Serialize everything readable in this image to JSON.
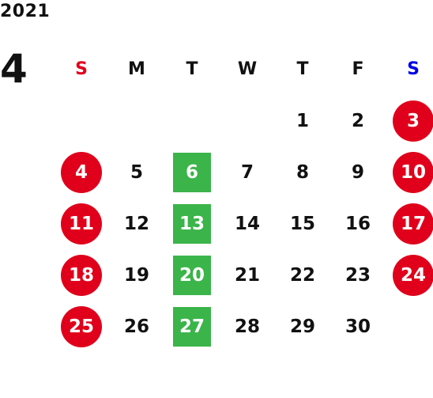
{
  "year": "2021",
  "month": "4",
  "colors": {
    "sunday": "#e0001b",
    "saturday": "#0000e6",
    "holiday_bg": "#e0001b",
    "marked_bg": "#3bb44a"
  },
  "weekdays": [
    "S",
    "M",
    "T",
    "W",
    "T",
    "F",
    "S"
  ],
  "weeks": [
    [
      {
        "label": ""
      },
      {
        "label": ""
      },
      {
        "label": ""
      },
      {
        "label": ""
      },
      {
        "label": "1"
      },
      {
        "label": "2"
      },
      {
        "label": "3",
        "style": "holiday"
      }
    ],
    [
      {
        "label": "4",
        "style": "holiday"
      },
      {
        "label": "5"
      },
      {
        "label": "6",
        "style": "marked"
      },
      {
        "label": "7"
      },
      {
        "label": "8"
      },
      {
        "label": "9"
      },
      {
        "label": "10",
        "style": "holiday"
      }
    ],
    [
      {
        "label": "11",
        "style": "holiday"
      },
      {
        "label": "12"
      },
      {
        "label": "13",
        "style": "marked"
      },
      {
        "label": "14"
      },
      {
        "label": "15"
      },
      {
        "label": "16"
      },
      {
        "label": "17",
        "style": "holiday"
      }
    ],
    [
      {
        "label": "18",
        "style": "holiday"
      },
      {
        "label": "19"
      },
      {
        "label": "20",
        "style": "marked"
      },
      {
        "label": "21"
      },
      {
        "label": "22"
      },
      {
        "label": "23"
      },
      {
        "label": "24",
        "style": "holiday"
      }
    ],
    [
      {
        "label": "25",
        "style": "holiday"
      },
      {
        "label": "26"
      },
      {
        "label": "27",
        "style": "marked"
      },
      {
        "label": "28"
      },
      {
        "label": "29"
      },
      {
        "label": "30"
      },
      {
        "label": ""
      }
    ]
  ]
}
